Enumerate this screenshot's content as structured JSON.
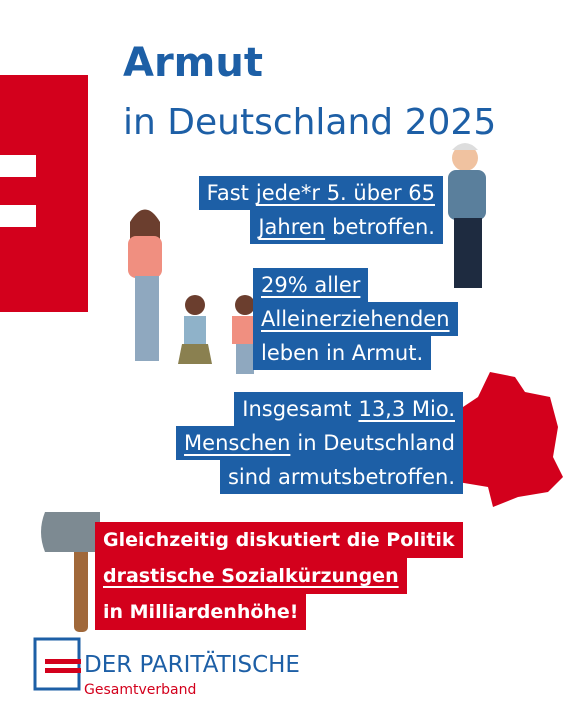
{
  "header": {
    "title": "Armut",
    "subtitle": "in Deutschland 2025"
  },
  "facts": [
    {
      "lines": [
        [
          {
            "text": "Fast"
          },
          {
            "text": "jede*r 5. über 65",
            "u": true
          }
        ],
        [
          {
            "text": "Jahren",
            "u": true
          },
          {
            "text": "betroffen."
          }
        ]
      ]
    },
    {
      "lines": [
        [
          {
            "text": "29% aller",
            "u": true
          }
        ],
        [
          {
            "text": "Alleinerziehenden",
            "u": true
          }
        ],
        [
          {
            "text": "leben in Armut."
          }
        ]
      ]
    },
    {
      "lines": [
        [
          {
            "text": "Insgesamt"
          },
          {
            "text": "13,3 Mio.",
            "u": true
          }
        ],
        [
          {
            "text": "Menschen",
            "u": true
          },
          {
            "text": "in Deutschland"
          }
        ],
        [
          {
            "text": "sind armutsbetroffen."
          }
        ]
      ]
    }
  ],
  "callout": {
    "lines": [
      [
        {
          "text": "Gleichzeitig diskutiert die Politik"
        }
      ],
      [
        {
          "text": "drastische Sozialkürzungen",
          "u": true
        }
      ],
      [
        {
          "text": "in Milliardenhöhe!"
        }
      ]
    ]
  },
  "logo": {
    "name": "DER PARITÄTISCHE",
    "subname": "Gesamtverband"
  }
}
